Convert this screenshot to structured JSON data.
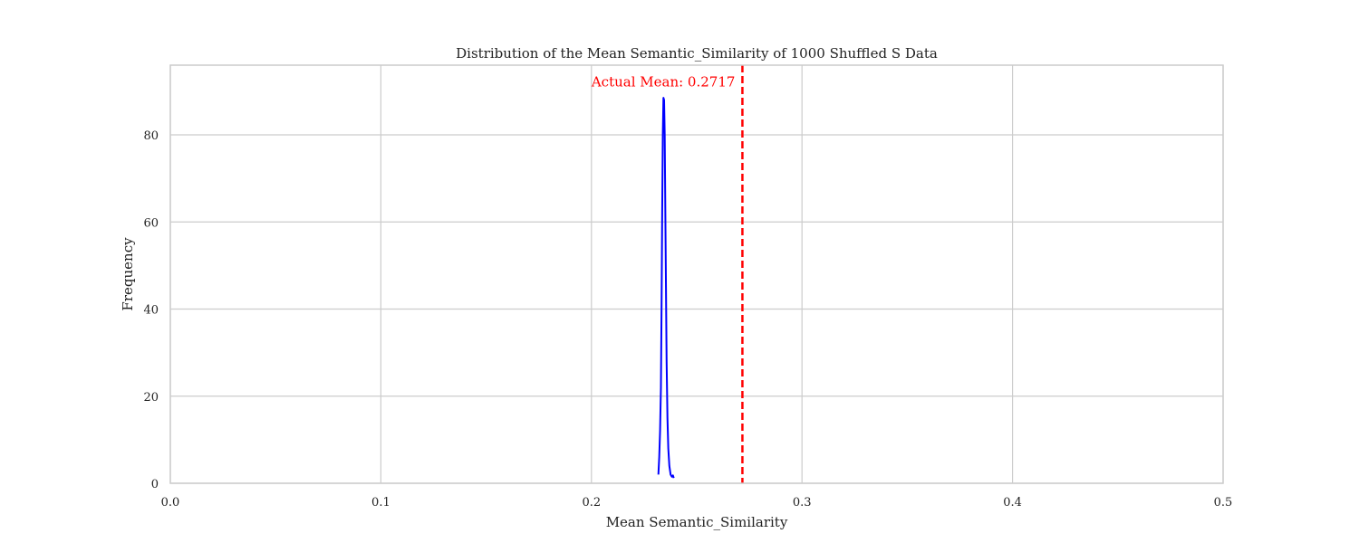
{
  "chart_data": {
    "type": "line",
    "title": "Distribution of the Mean Semantic_Similarity of 1000 Shuffled S Data",
    "xlabel": "Mean Semantic_Similarity",
    "ylabel": "Frequency",
    "xlim": [
      0.0,
      0.5
    ],
    "ylim": [
      0,
      96
    ],
    "xticks": [
      0.0,
      0.1,
      0.2,
      0.3,
      0.4,
      0.5
    ],
    "xtick_labels": [
      "0.0",
      "0.1",
      "0.2",
      "0.3",
      "0.4",
      "0.5"
    ],
    "yticks": [
      0,
      20,
      40,
      60,
      80
    ],
    "ytick_labels": [
      "0",
      "20",
      "40",
      "60",
      "80"
    ],
    "grid": true,
    "series": [
      {
        "color": "#0000ff",
        "x": [
          0.2318,
          0.2322,
          0.2326,
          0.233,
          0.2333,
          0.2336,
          0.2339,
          0.2342,
          0.2345,
          0.2348,
          0.2351,
          0.2354,
          0.2357,
          0.2361,
          0.2365,
          0.237,
          0.2376,
          0.2382,
          0.2387,
          0.2391
        ],
        "y": [
          2,
          6,
          12,
          22,
          40,
          62,
          80,
          88.5,
          88,
          80,
          62,
          45,
          28,
          15,
          8,
          4,
          2,
          1.5,
          1.8,
          1.2
        ]
      }
    ],
    "annotations": [
      {
        "type": "vline",
        "x": 0.2717,
        "color": "#ff0000",
        "style": "dashed",
        "label": "Actual Mean: 0.2717",
        "label_y": 92
      }
    ]
  }
}
